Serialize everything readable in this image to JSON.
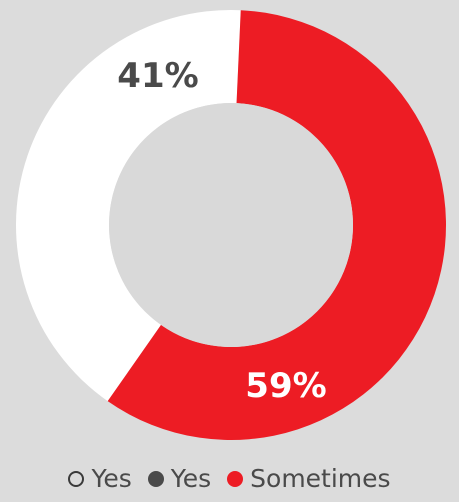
{
  "colors": {
    "background": "#dcdcdc",
    "hole": "#d9d9d9",
    "white_slice": "#ffffff",
    "red_slice": "#ed1c24",
    "dark_text": "#4a4a4a",
    "label_on_red": "#ffffff"
  },
  "chart_data": {
    "type": "pie",
    "style": "donut",
    "title": "",
    "slices": [
      {
        "label": "41%",
        "value": 41,
        "color": "#ffffff",
        "label_color": "#4a4a4a"
      },
      {
        "label": "59%",
        "value": 59,
        "color": "#ed1c24",
        "label_color": "#ffffff"
      }
    ],
    "legend": {
      "placement": "bottom",
      "items": [
        {
          "label": "Yes",
          "marker": "hollow-circle",
          "color": "#4a4a4a"
        },
        {
          "label": "Yes",
          "marker": "filled-circle",
          "color": "#4a4a4a"
        },
        {
          "label": "Sometimes",
          "marker": "filled-circle",
          "color": "#ed1c24"
        }
      ]
    }
  }
}
